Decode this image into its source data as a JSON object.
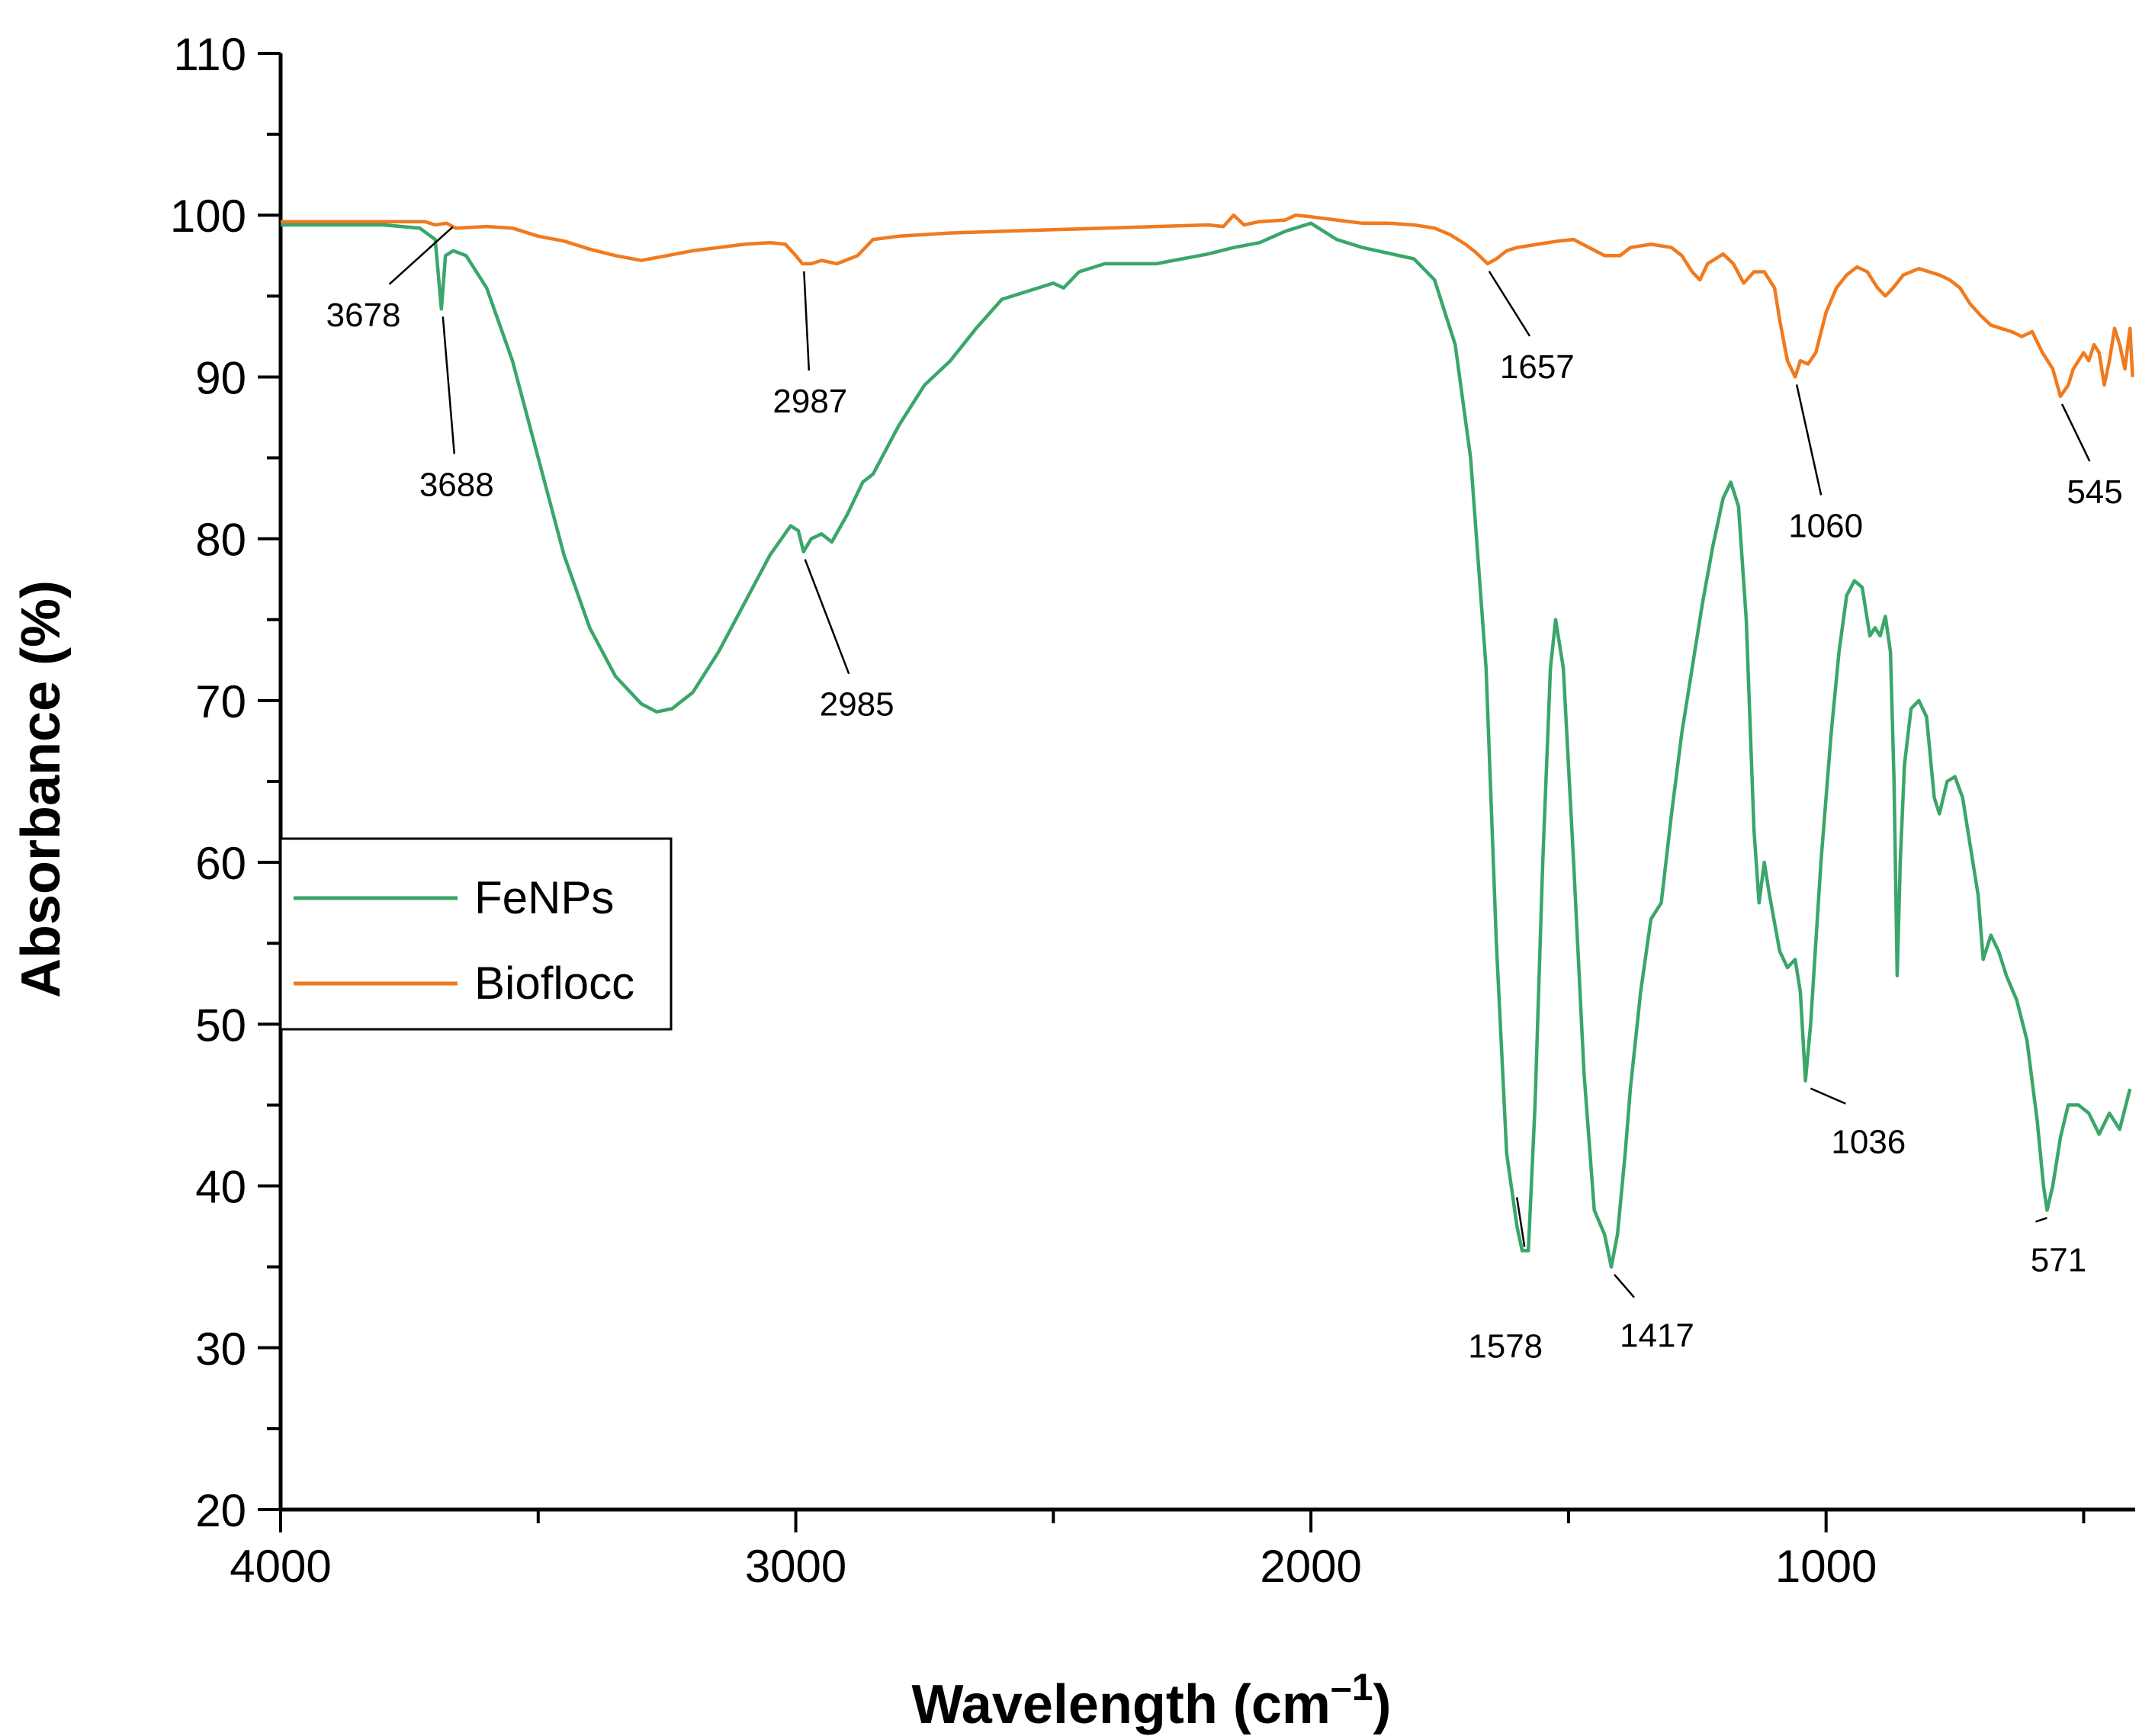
{
  "chart_data": {
    "type": "line",
    "title": "",
    "xlabel": "Wavelength (cm",
    "xlabel_sup": "–1",
    "xlabel_close": ")",
    "ylabel": "Absorbance (%)",
    "xlim": [
      4000,
      400
    ],
    "ylim": [
      20,
      110
    ],
    "x_ticks": [
      4000,
      3000,
      2000,
      1000
    ],
    "y_ticks": [
      20,
      30,
      40,
      50,
      60,
      70,
      80,
      90,
      100,
      110
    ],
    "legend_position": "center-left",
    "series": [
      {
        "name": "FeNPs",
        "color": "#3aa66a",
        "points": [
          [
            4000,
            99.4
          ],
          [
            3900,
            99.4
          ],
          [
            3800,
            99.4
          ],
          [
            3730,
            99.2
          ],
          [
            3700,
            98.5
          ],
          [
            3688,
            94.2
          ],
          [
            3680,
            97.5
          ],
          [
            3665,
            97.8
          ],
          [
            3640,
            97.5
          ],
          [
            3600,
            95.5
          ],
          [
            3550,
            91.0
          ],
          [
            3500,
            85.0
          ],
          [
            3450,
            79.0
          ],
          [
            3400,
            74.5
          ],
          [
            3350,
            71.5
          ],
          [
            3300,
            69.8
          ],
          [
            3270,
            69.3
          ],
          [
            3240,
            69.5
          ],
          [
            3200,
            70.5
          ],
          [
            3150,
            73.0
          ],
          [
            3100,
            76.0
          ],
          [
            3050,
            79.0
          ],
          [
            3010,
            80.8
          ],
          [
            2995,
            80.5
          ],
          [
            2985,
            79.2
          ],
          [
            2970,
            80.0
          ],
          [
            2950,
            80.3
          ],
          [
            2930,
            79.8
          ],
          [
            2900,
            81.5
          ],
          [
            2870,
            83.5
          ],
          [
            2850,
            84.0
          ],
          [
            2800,
            87.0
          ],
          [
            2750,
            89.5
          ],
          [
            2700,
            91.0
          ],
          [
            2650,
            93.0
          ],
          [
            2600,
            94.8
          ],
          [
            2550,
            95.3
          ],
          [
            2500,
            95.8
          ],
          [
            2480,
            95.5
          ],
          [
            2450,
            96.5
          ],
          [
            2400,
            97.0
          ],
          [
            2300,
            97.0
          ],
          [
            2200,
            97.6
          ],
          [
            2150,
            98.0
          ],
          [
            2100,
            98.3
          ],
          [
            2050,
            99.0
          ],
          [
            2000,
            99.5
          ],
          [
            1950,
            98.5
          ],
          [
            1900,
            98.0
          ],
          [
            1800,
            97.3
          ],
          [
            1760,
            96.0
          ],
          [
            1720,
            92.0
          ],
          [
            1690,
            85.0
          ],
          [
            1660,
            72.0
          ],
          [
            1640,
            55.0
          ],
          [
            1620,
            42.0
          ],
          [
            1600,
            37.5
          ],
          [
            1590,
            36.0
          ],
          [
            1578,
            36.0
          ],
          [
            1565,
            45.0
          ],
          [
            1550,
            60.0
          ],
          [
            1535,
            72.0
          ],
          [
            1525,
            75.0
          ],
          [
            1510,
            72.0
          ],
          [
            1490,
            60.0
          ],
          [
            1470,
            47.0
          ],
          [
            1450,
            38.5
          ],
          [
            1430,
            37.0
          ],
          [
            1417,
            35.0
          ],
          [
            1405,
            37.0
          ],
          [
            1390,
            42.0
          ],
          [
            1380,
            46.0
          ],
          [
            1360,
            52.0
          ],
          [
            1340,
            56.5
          ],
          [
            1320,
            57.5
          ],
          [
            1300,
            63.0
          ],
          [
            1280,
            68.0
          ],
          [
            1260,
            72.0
          ],
          [
            1240,
            76.0
          ],
          [
            1220,
            79.5
          ],
          [
            1200,
            82.5
          ],
          [
            1185,
            83.5
          ],
          [
            1170,
            82.0
          ],
          [
            1155,
            75.0
          ],
          [
            1140,
            62.0
          ],
          [
            1130,
            57.5
          ],
          [
            1120,
            60.0
          ],
          [
            1110,
            58.0
          ],
          [
            1090,
            54.5
          ],
          [
            1075,
            53.5
          ],
          [
            1060,
            54.0
          ],
          [
            1050,
            52.0
          ],
          [
            1040,
            46.5
          ],
          [
            1030,
            50.0
          ],
          [
            1010,
            60.0
          ],
          [
            990,
            68.0
          ],
          [
            975,
            73.0
          ],
          [
            960,
            76.5
          ],
          [
            945,
            77.4
          ],
          [
            930,
            77.0
          ],
          [
            915,
            74.0
          ],
          [
            905,
            74.5
          ],
          [
            895,
            74.0
          ],
          [
            885,
            75.2
          ],
          [
            875,
            73.0
          ],
          [
            868,
            65.0
          ],
          [
            862,
            53.0
          ],
          [
            856,
            60.0
          ],
          [
            848,
            66.0
          ],
          [
            835,
            69.5
          ],
          [
            820,
            70.0
          ],
          [
            805,
            69.0
          ],
          [
            790,
            64.0
          ],
          [
            780,
            63.0
          ],
          [
            765,
            65.0
          ],
          [
            750,
            65.3
          ],
          [
            735,
            64.0
          ],
          [
            720,
            61.0
          ],
          [
            705,
            58.0
          ],
          [
            695,
            54.0
          ],
          [
            680,
            55.5
          ],
          [
            665,
            54.5
          ],
          [
            650,
            53.0
          ],
          [
            630,
            51.5
          ],
          [
            610,
            49.0
          ],
          [
            590,
            44.0
          ],
          [
            578,
            40.0
          ],
          [
            571,
            38.5
          ],
          [
            560,
            40.0
          ],
          [
            545,
            43.0
          ],
          [
            530,
            45.0
          ],
          [
            510,
            45.0
          ],
          [
            490,
            44.5
          ],
          [
            470,
            43.2
          ],
          [
            450,
            44.5
          ],
          [
            430,
            43.5
          ],
          [
            410,
            46.0
          ]
        ]
      },
      {
        "name": "Bioflocc",
        "color": "#f07a1e",
        "points": [
          [
            4000,
            99.6
          ],
          [
            3900,
            99.6
          ],
          [
            3800,
            99.6
          ],
          [
            3720,
            99.6
          ],
          [
            3700,
            99.4
          ],
          [
            3678,
            99.5
          ],
          [
            3660,
            99.2
          ],
          [
            3600,
            99.3
          ],
          [
            3550,
            99.2
          ],
          [
            3500,
            98.7
          ],
          [
            3450,
            98.4
          ],
          [
            3400,
            97.9
          ],
          [
            3350,
            97.5
          ],
          [
            3300,
            97.2
          ],
          [
            3250,
            97.5
          ],
          [
            3200,
            97.8
          ],
          [
            3150,
            98.0
          ],
          [
            3100,
            98.2
          ],
          [
            3050,
            98.3
          ],
          [
            3020,
            98.2
          ],
          [
            3000,
            97.5
          ],
          [
            2987,
            97.0
          ],
          [
            2970,
            97.0
          ],
          [
            2950,
            97.2
          ],
          [
            2920,
            97.0
          ],
          [
            2880,
            97.5
          ],
          [
            2850,
            98.5
          ],
          [
            2800,
            98.7
          ],
          [
            2700,
            98.9
          ],
          [
            2600,
            99.0
          ],
          [
            2500,
            99.1
          ],
          [
            2400,
            99.2
          ],
          [
            2300,
            99.3
          ],
          [
            2200,
            99.4
          ],
          [
            2170,
            99.3
          ],
          [
            2150,
            100.0
          ],
          [
            2130,
            99.4
          ],
          [
            2100,
            99.6
          ],
          [
            2050,
            99.7
          ],
          [
            2030,
            100.0
          ],
          [
            2000,
            99.9
          ],
          [
            1950,
            99.7
          ],
          [
            1900,
            99.5
          ],
          [
            1850,
            99.5
          ],
          [
            1800,
            99.4
          ],
          [
            1760,
            99.2
          ],
          [
            1730,
            98.8
          ],
          [
            1700,
            98.2
          ],
          [
            1680,
            97.7
          ],
          [
            1657,
            97.0
          ],
          [
            1640,
            97.3
          ],
          [
            1620,
            97.8
          ],
          [
            1600,
            98.0
          ],
          [
            1560,
            98.2
          ],
          [
            1520,
            98.4
          ],
          [
            1490,
            98.5
          ],
          [
            1460,
            98.0
          ],
          [
            1430,
            97.5
          ],
          [
            1400,
            97.5
          ],
          [
            1380,
            98.0
          ],
          [
            1340,
            98.2
          ],
          [
            1300,
            98.0
          ],
          [
            1280,
            97.5
          ],
          [
            1260,
            96.5
          ],
          [
            1245,
            96.0
          ],
          [
            1230,
            97.0
          ],
          [
            1200,
            97.6
          ],
          [
            1180,
            97.0
          ],
          [
            1160,
            95.8
          ],
          [
            1140,
            96.5
          ],
          [
            1120,
            96.5
          ],
          [
            1100,
            95.5
          ],
          [
            1090,
            93.5
          ],
          [
            1075,
            91.0
          ],
          [
            1060,
            90.0
          ],
          [
            1050,
            91.0
          ],
          [
            1035,
            90.8
          ],
          [
            1020,
            91.5
          ],
          [
            1000,
            94.0
          ],
          [
            980,
            95.5
          ],
          [
            960,
            96.3
          ],
          [
            940,
            96.8
          ],
          [
            920,
            96.5
          ],
          [
            900,
            95.5
          ],
          [
            885,
            95.0
          ],
          [
            870,
            95.5
          ],
          [
            850,
            96.3
          ],
          [
            820,
            96.7
          ],
          [
            800,
            96.5
          ],
          [
            780,
            96.3
          ],
          [
            760,
            96.0
          ],
          [
            740,
            95.5
          ],
          [
            720,
            94.5
          ],
          [
            700,
            93.8
          ],
          [
            680,
            93.2
          ],
          [
            660,
            93.0
          ],
          [
            640,
            92.8
          ],
          [
            620,
            92.5
          ],
          [
            600,
            92.8
          ],
          [
            580,
            91.5
          ],
          [
            560,
            90.5
          ],
          [
            545,
            88.8
          ],
          [
            530,
            89.5
          ],
          [
            520,
            90.5
          ],
          [
            500,
            91.5
          ],
          [
            490,
            91.0
          ],
          [
            480,
            92.0
          ],
          [
            470,
            91.5
          ],
          [
            460,
            89.5
          ],
          [
            450,
            91.0
          ],
          [
            440,
            93.0
          ],
          [
            430,
            92.0
          ],
          [
            420,
            90.5
          ],
          [
            410,
            93.0
          ],
          [
            405,
            90.0
          ]
        ]
      }
    ],
    "annotations": [
      {
        "text": "3678",
        "x": 3678,
        "y": 99.5,
        "series": "Bioflocc"
      },
      {
        "text": "3688",
        "x": 3688,
        "y": 94.2,
        "series": "FeNPs"
      },
      {
        "text": "2987",
        "x": 2987,
        "y": 97.0,
        "series": "Bioflocc"
      },
      {
        "text": "2985",
        "x": 2985,
        "y": 79.2,
        "series": "FeNPs"
      },
      {
        "text": "1657",
        "x": 1657,
        "y": 97.0,
        "series": "Bioflocc"
      },
      {
        "text": "1060",
        "x": 1060,
        "y": 90.0,
        "series": "Bioflocc"
      },
      {
        "text": "545",
        "x": 545,
        "y": 88.8,
        "series": "Bioflocc"
      },
      {
        "text": "1578",
        "x": 1578,
        "y": 36.0,
        "series": "FeNPs"
      },
      {
        "text": "1417",
        "x": 1417,
        "y": 35.0,
        "series": "FeNPs"
      },
      {
        "text": "1036",
        "x": 1036,
        "y": 46.5,
        "series": "FeNPs"
      },
      {
        "text": "571",
        "x": 571,
        "y": 38.5,
        "series": "FeNPs"
      }
    ]
  }
}
